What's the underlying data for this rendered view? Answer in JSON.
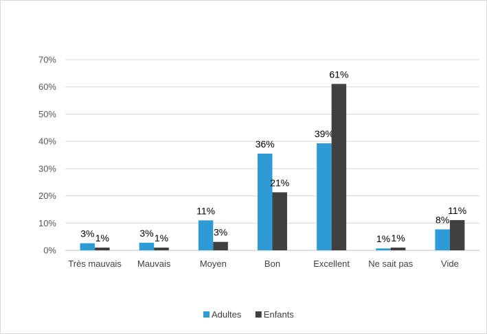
{
  "chart_data": {
    "type": "bar",
    "title": "",
    "xlabel": "",
    "ylabel": "",
    "categories": [
      "Très mauvais",
      "Mauvais",
      "Moyen",
      "Bon",
      "Excellent",
      "Ne sait pas",
      "Vide"
    ],
    "series": [
      {
        "name": "Adultes",
        "color": "#2e9bd6",
        "values": [
          2.6,
          2.8,
          11,
          35.5,
          39.3,
          0.7,
          7.7
        ],
        "labels": [
          "3%",
          "3%",
          "11%",
          "36%",
          "39%",
          "1%",
          "8%"
        ]
      },
      {
        "name": "Enfants",
        "color": "#404040",
        "values": [
          1.0,
          1.0,
          3.1,
          21.3,
          61.1,
          1.0,
          11.1
        ],
        "labels": [
          "1%",
          "1%",
          "3%",
          "21%",
          "61%",
          "1%",
          "11%"
        ]
      }
    ],
    "ylim": [
      0,
      70
    ],
    "yticks": [
      0,
      10,
      20,
      30,
      40,
      50,
      60,
      70
    ],
    "ytick_labels": [
      "0%",
      "10%",
      "20%",
      "30%",
      "40%",
      "50%",
      "60%",
      "70%"
    ],
    "grid": true,
    "legend_position": "bottom"
  }
}
